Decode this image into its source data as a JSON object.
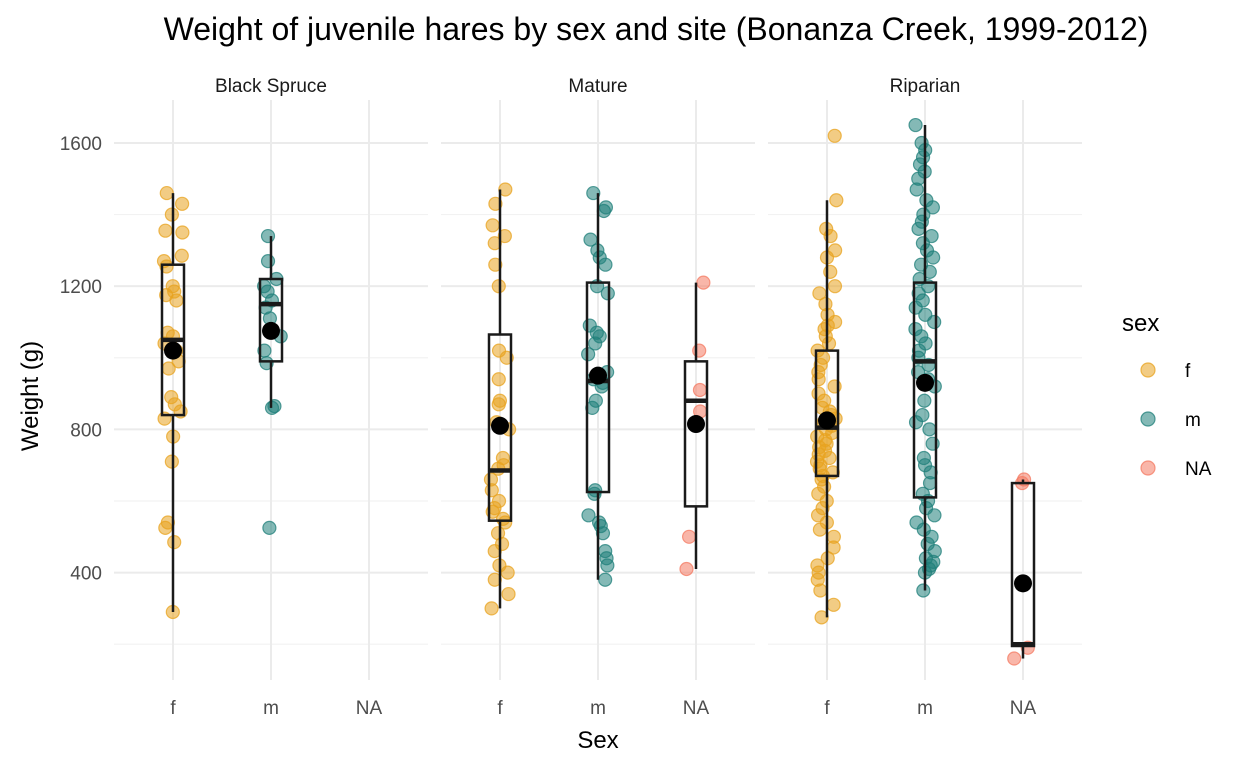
{
  "chart_data": {
    "type": "boxplot",
    "title": "Weight of juvenile hares by sex and site (Bonanza Creek, 1999-2012)",
    "xlabel": "Sex",
    "ylabel": "Weight (g)",
    "ylim": [
      100,
      1720
    ],
    "y_ticks": [
      400,
      800,
      1200,
      1600
    ],
    "categories": [
      "f",
      "m",
      "NA"
    ],
    "legend": {
      "title": "sex",
      "position": "right",
      "entries": [
        {
          "label": "f",
          "color": "#e8a31f"
        },
        {
          "label": "m",
          "color": "#1f7f7a"
        },
        {
          "label": "NA",
          "color": "#f47a62"
        }
      ]
    },
    "facets": [
      {
        "name": "Black Spruce",
        "groups": [
          {
            "sex": "f",
            "min": 290,
            "q1": 840,
            "median": 1050,
            "q3": 1260,
            "max": 1460,
            "mean": 1020,
            "points": [
              290,
              485,
              525,
              540,
              710,
              780,
              830,
              850,
              870,
              890,
              970,
              990,
              1020,
              1040,
              1060,
              1070,
              1160,
              1175,
              1185,
              1200,
              1255,
              1270,
              1285,
              1350,
              1355,
              1400,
              1430,
              1460
            ]
          },
          {
            "sex": "m",
            "min": 860,
            "q1": 990,
            "median": 1150,
            "q3": 1220,
            "max": 1340,
            "mean": 1075,
            "points": [
              525,
              860,
              865,
              985,
              1020,
              1060,
              1110,
              1140,
              1160,
              1185,
              1200,
              1220,
              1270,
              1340
            ]
          },
          {
            "sex": "NA",
            "points": []
          }
        ]
      },
      {
        "name": "Mature",
        "groups": [
          {
            "sex": "f",
            "min": 300,
            "q1": 545,
            "median": 685,
            "q3": 1065,
            "max": 1470,
            "mean": 810,
            "points": [
              300,
              340,
              380,
              400,
              420,
              460,
              480,
              510,
              540,
              550,
              570,
              580,
              600,
              630,
              660,
              690,
              700,
              720,
              800,
              820,
              870,
              880,
              940,
              1000,
              1020,
              1200,
              1260,
              1320,
              1340,
              1370,
              1430,
              1470
            ]
          },
          {
            "sex": "m",
            "min": 380,
            "q1": 625,
            "median": 935,
            "q3": 1210,
            "max": 1460,
            "mean": 950,
            "points": [
              380,
              420,
              440,
              460,
              510,
              530,
              540,
              560,
              620,
              630,
              860,
              880,
              920,
              930,
              940,
              960,
              1010,
              1040,
              1060,
              1070,
              1090,
              1180,
              1200,
              1260,
              1280,
              1300,
              1330,
              1410,
              1420,
              1460
            ]
          },
          {
            "sex": "NA",
            "min": 410,
            "q1": 585,
            "median": 880,
            "q3": 990,
            "max": 1210,
            "mean": 815,
            "points": [
              410,
              500,
              850,
              910,
              1020,
              1210
            ]
          }
        ]
      },
      {
        "name": "Riparian",
        "groups": [
          {
            "sex": "f",
            "min": 275,
            "q1": 670,
            "median": 805,
            "q3": 1020,
            "max": 1440,
            "mean": 825,
            "points": [
              275,
              310,
              350,
              380,
              400,
              420,
              440,
              470,
              500,
              520,
              540,
              560,
              580,
              600,
              620,
              640,
              660,
              670,
              680,
              690,
              700,
              710,
              720,
              730,
              740,
              750,
              760,
              770,
              780,
              790,
              800,
              810,
              820,
              830,
              840,
              850,
              860,
              880,
              900,
              920,
              940,
              960,
              980,
              1000,
              1020,
              1040,
              1060,
              1080,
              1090,
              1100,
              1120,
              1150,
              1180,
              1200,
              1240,
              1280,
              1300,
              1340,
              1360,
              1440,
              1620
            ]
          },
          {
            "sex": "m",
            "min": 350,
            "q1": 610,
            "median": 990,
            "q3": 1210,
            "max": 1650,
            "mean": 930,
            "points": [
              350,
              400,
              410,
              420,
              430,
              440,
              460,
              480,
              500,
              520,
              540,
              560,
              580,
              600,
              620,
              650,
              680,
              700,
              720,
              760,
              800,
              820,
              840,
              880,
              920,
              940,
              960,
              980,
              1000,
              1020,
              1040,
              1060,
              1080,
              1100,
              1120,
              1140,
              1160,
              1180,
              1200,
              1220,
              1240,
              1260,
              1280,
              1300,
              1320,
              1340,
              1360,
              1380,
              1400,
              1420,
              1440,
              1470,
              1500,
              1520,
              1540,
              1560,
              1580,
              1600,
              1650
            ]
          },
          {
            "sex": "NA",
            "min": 160,
            "q1": 195,
            "median": 200,
            "q3": 650,
            "max": 660,
            "mean": 370,
            "points": [
              160,
              190,
              650,
              660
            ]
          }
        ]
      }
    ]
  }
}
